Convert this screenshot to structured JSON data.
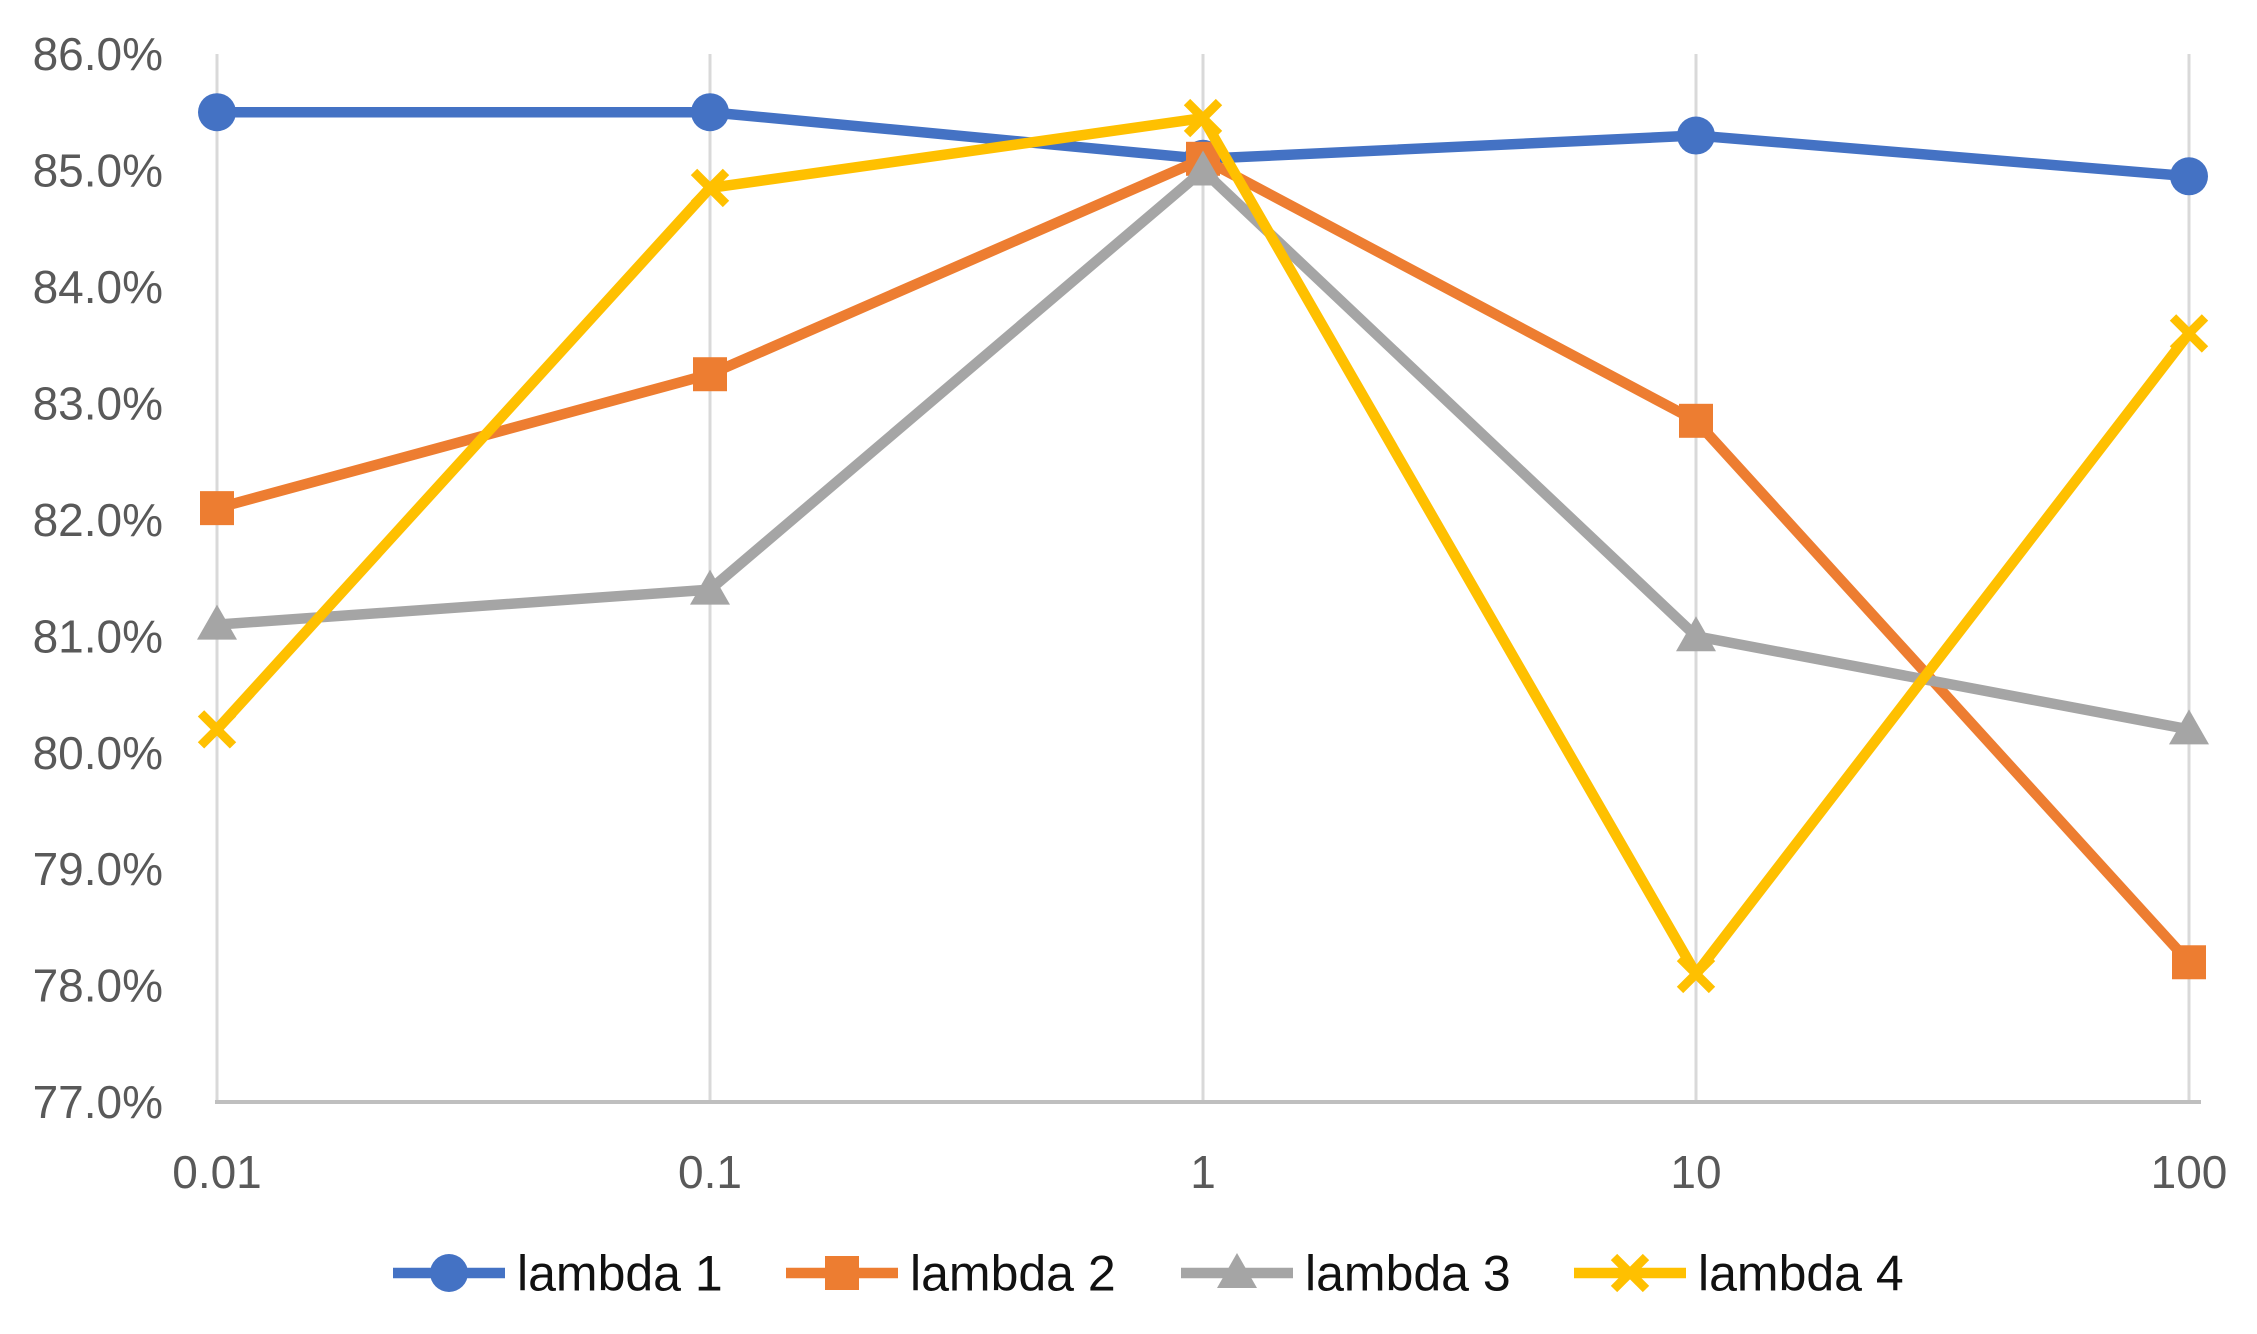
{
  "chart_data": {
    "type": "line",
    "title": "",
    "xlabel": "",
    "ylabel": "",
    "x_categories": [
      "0.01",
      "0.1",
      "1",
      "10",
      "100"
    ],
    "series": [
      {
        "name": "lambda 1",
        "color": "#4472C4",
        "marker": "circle",
        "values": [
          85.5,
          85.5,
          85.1,
          85.3,
          84.95
        ]
      },
      {
        "name": "lambda 2",
        "color": "#ED7D31",
        "marker": "square",
        "values": [
          82.1,
          83.25,
          85.1,
          82.85,
          78.2
        ]
      },
      {
        "name": "lambda 3",
        "color": "#A5A5A5",
        "marker": "triangle",
        "values": [
          81.1,
          81.4,
          85.0,
          81.0,
          80.2
        ]
      },
      {
        "name": "lambda 4",
        "color": "#FFC000",
        "marker": "x",
        "values": [
          80.2,
          84.85,
          85.45,
          78.1,
          83.6
        ]
      }
    ],
    "y_ticks": [
      "86.0%",
      "85.0%",
      "84.0%",
      "83.0%",
      "82.0%",
      "81.0%",
      "80.0%",
      "79.0%",
      "78.0%",
      "77.0%"
    ],
    "y_min": 77,
    "y_max": 86,
    "y_tick_step": 1,
    "grid": "vertical-only",
    "legend_position": "bottom-center",
    "colors": {
      "gridline": "#D9D9D9",
      "axis_line": "#BFBFBF",
      "tick_label": "#595959",
      "legend_text": "#111111",
      "background": "#FFFFFF"
    }
  }
}
